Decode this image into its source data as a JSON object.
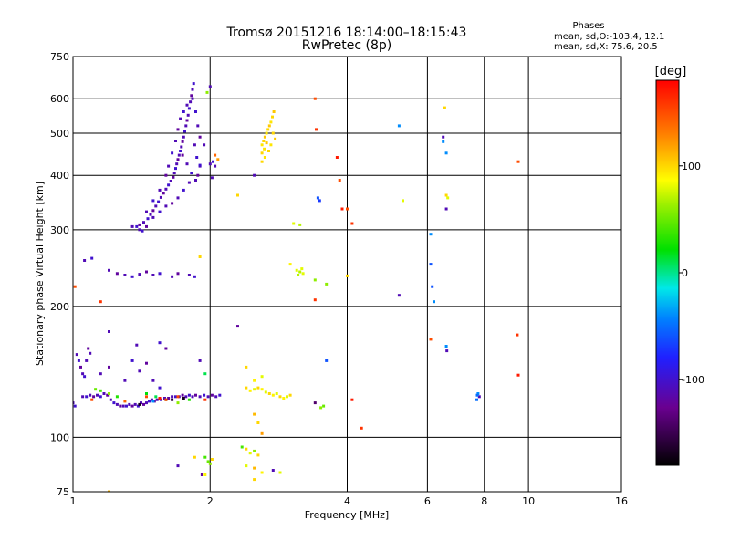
{
  "header": {
    "title": "Tromsø 20151216 18:14:00–18:15:43",
    "subtitle": "RwPretec (8p)"
  },
  "info": {
    "heading": "Phases",
    "line1": "mean, sd,O:-103.4, 12.1",
    "line2": "mean, sd,X:  75.6, 20.5"
  },
  "colorbar": {
    "unit": "[deg]",
    "ticks": [
      "100",
      "0",
      "-100"
    ],
    "tick_values": [
      100,
      0,
      -100
    ],
    "range": [
      -180,
      180
    ]
  },
  "chart_data": {
    "type": "scatter",
    "title": "Tromsø 20151216 18:14:00–18:15:43",
    "subtitle": "RwPretec (8p)",
    "xlabel": "Frequency [MHz]",
    "ylabel": "Stationary phase Virtual Height [km]",
    "x_scale": "log",
    "y_scale": "log",
    "xlim": [
      1,
      16
    ],
    "ylim": [
      75,
      750
    ],
    "x_ticks": [
      1,
      2,
      4,
      6,
      8,
      10,
      16
    ],
    "x_tick_labels": [
      "1",
      "2",
      "4",
      "6",
      "8",
      "10",
      "16"
    ],
    "y_ticks": [
      75,
      100,
      200,
      300,
      400,
      500,
      600,
      750
    ],
    "y_tick_labels": [
      "75",
      "100",
      "200",
      "300",
      "400",
      "500",
      "600",
      "750"
    ],
    "grid": true,
    "color_by": "phase [deg]",
    "points": [
      [
        1.0,
        120,
        -110
      ],
      [
        1.01,
        118,
        -100
      ],
      [
        1.02,
        155,
        -110
      ],
      [
        1.03,
        150,
        -100
      ],
      [
        1.04,
        145,
        -120
      ],
      [
        1.05,
        140,
        -110
      ],
      [
        1.06,
        138,
        -100
      ],
      [
        1.07,
        150,
        -110
      ],
      [
        1.08,
        160,
        -120
      ],
      [
        1.09,
        156,
        -110
      ],
      [
        1.05,
        124,
        -110
      ],
      [
        1.07,
        124,
        -100
      ],
      [
        1.09,
        125,
        -110
      ],
      [
        1.11,
        124,
        -120
      ],
      [
        1.13,
        125,
        -110
      ],
      [
        1.15,
        124,
        -100
      ],
      [
        1.17,
        126,
        -110
      ],
      [
        1.19,
        125,
        -120
      ],
      [
        1.21,
        122,
        -110
      ],
      [
        1.23,
        120,
        -100
      ],
      [
        1.25,
        119,
        -110
      ],
      [
        1.27,
        118,
        -120
      ],
      [
        1.29,
        118,
        -110
      ],
      [
        1.31,
        118,
        -100
      ],
      [
        1.33,
        119,
        -110
      ],
      [
        1.35,
        118,
        -120
      ],
      [
        1.37,
        119,
        -110
      ],
      [
        1.39,
        118,
        -100
      ],
      [
        1.41,
        120,
        -110
      ],
      [
        1.43,
        119,
        -120
      ],
      [
        1.45,
        120,
        -110
      ],
      [
        1.47,
        121,
        -100
      ],
      [
        1.49,
        122,
        -110
      ],
      [
        1.51,
        121,
        -120
      ],
      [
        1.53,
        122,
        -110
      ],
      [
        1.56,
        122,
        -100
      ],
      [
        1.59,
        123,
        -110
      ],
      [
        1.62,
        123,
        -120
      ],
      [
        1.65,
        124,
        -110
      ],
      [
        1.68,
        124,
        -100
      ],
      [
        1.71,
        124,
        -110
      ],
      [
        1.74,
        125,
        -120
      ],
      [
        1.77,
        124,
        -110
      ],
      [
        1.8,
        125,
        -100
      ],
      [
        1.83,
        124,
        -110
      ],
      [
        1.86,
        125,
        -120
      ],
      [
        1.9,
        124,
        -110
      ],
      [
        1.94,
        125,
        -100
      ],
      [
        1.98,
        124,
        -110
      ],
      [
        2.02,
        125,
        -120
      ],
      [
        2.06,
        124,
        -110
      ],
      [
        2.1,
        125,
        -100
      ],
      [
        1.15,
        140,
        -110
      ],
      [
        1.2,
        145,
        -120
      ],
      [
        1.3,
        135,
        -110
      ],
      [
        1.35,
        150,
        -100
      ],
      [
        1.4,
        142,
        -110
      ],
      [
        1.45,
        148,
        -120
      ],
      [
        1.5,
        135,
        -110
      ],
      [
        1.55,
        130,
        -100
      ],
      [
        1.15,
        128,
        40
      ],
      [
        1.2,
        126,
        60
      ],
      [
        1.25,
        124,
        30
      ],
      [
        1.12,
        129,
        50
      ],
      [
        1.45,
        126,
        20
      ],
      [
        1.52,
        124,
        10
      ],
      [
        1.6,
        122,
        40
      ],
      [
        1.7,
        120,
        60
      ],
      [
        1.8,
        122,
        30
      ],
      [
        1.5,
        121,
        -40
      ],
      [
        1.45,
        124,
        150
      ],
      [
        1.55,
        123,
        170
      ],
      [
        1.6,
        122,
        160
      ],
      [
        1.7,
        124,
        150
      ],
      [
        1.3,
        121,
        140
      ],
      [
        1.1,
        122,
        150
      ],
      [
        1.4,
        119,
        -170
      ],
      [
        1.65,
        122,
        -160
      ],
      [
        1.75,
        123,
        -170
      ],
      [
        1.95,
        122,
        160
      ],
      [
        1.2,
        175,
        -110
      ],
      [
        1.55,
        165,
        -100
      ],
      [
        1.6,
        160,
        -120
      ],
      [
        1.38,
        163,
        -110
      ],
      [
        1.9,
        150,
        -110
      ],
      [
        1.95,
        140,
        10
      ],
      [
        1.06,
        255,
        -110
      ],
      [
        1.1,
        258,
        -100
      ],
      [
        1.2,
        242,
        -110
      ],
      [
        1.25,
        238,
        -120
      ],
      [
        1.3,
        236,
        -110
      ],
      [
        1.35,
        234,
        -100
      ],
      [
        1.4,
        237,
        -110
      ],
      [
        1.45,
        240,
        -120
      ],
      [
        1.5,
        236,
        -110
      ],
      [
        1.55,
        238,
        -100
      ],
      [
        1.65,
        234,
        -110
      ],
      [
        1.7,
        238,
        -120
      ],
      [
        1.8,
        236,
        -110
      ],
      [
        1.85,
        234,
        -100
      ],
      [
        1.01,
        222,
        150
      ],
      [
        1.15,
        205,
        160
      ],
      [
        1.4,
        300,
        -110
      ],
      [
        1.45,
        305,
        -120
      ],
      [
        1.42,
        298,
        -100
      ],
      [
        1.9,
        260,
        100
      ],
      [
        1.35,
        305,
        -110
      ],
      [
        1.38,
        305,
        -100
      ],
      [
        1.4,
        308,
        -120
      ],
      [
        1.43,
        312,
        -110
      ],
      [
        1.46,
        318,
        -100
      ],
      [
        1.48,
        325,
        -110
      ],
      [
        1.5,
        332,
        -120
      ],
      [
        1.52,
        340,
        -110
      ],
      [
        1.54,
        348,
        -100
      ],
      [
        1.56,
        356,
        -110
      ],
      [
        1.58,
        364,
        -120
      ],
      [
        1.6,
        372,
        -110
      ],
      [
        1.62,
        380,
        -100
      ],
      [
        1.64,
        388,
        -110
      ],
      [
        1.66,
        396,
        -120
      ],
      [
        1.67,
        405,
        -110
      ],
      [
        1.68,
        415,
        -100
      ],
      [
        1.69,
        425,
        -110
      ],
      [
        1.7,
        435,
        -120
      ],
      [
        1.71,
        445,
        -110
      ],
      [
        1.72,
        455,
        -100
      ],
      [
        1.73,
        465,
        -110
      ],
      [
        1.74,
        478,
        -120
      ],
      [
        1.75,
        490,
        -110
      ],
      [
        1.76,
        505,
        -100
      ],
      [
        1.77,
        520,
        -110
      ],
      [
        1.78,
        535,
        -120
      ],
      [
        1.79,
        550,
        -110
      ],
      [
        1.8,
        570,
        -100
      ],
      [
        1.81,
        590,
        -110
      ],
      [
        1.82,
        610,
        -120
      ],
      [
        1.83,
        630,
        -110
      ],
      [
        1.84,
        650,
        -100
      ],
      [
        1.45,
        330,
        -110
      ],
      [
        1.5,
        350,
        -100
      ],
      [
        1.55,
        370,
        -110
      ],
      [
        1.6,
        400,
        -120
      ],
      [
        1.62,
        420,
        -110
      ],
      [
        1.65,
        450,
        -100
      ],
      [
        1.68,
        480,
        -110
      ],
      [
        1.7,
        510,
        -120
      ],
      [
        1.72,
        540,
        -110
      ],
      [
        1.75,
        560,
        -100
      ],
      [
        1.78,
        580,
        -110
      ],
      [
        1.83,
        600,
        -110
      ],
      [
        1.86,
        560,
        -100
      ],
      [
        1.88,
        520,
        -110
      ],
      [
        1.9,
        490,
        -120
      ],
      [
        1.85,
        470,
        -110
      ],
      [
        1.87,
        440,
        -100
      ],
      [
        1.9,
        420,
        -110
      ],
      [
        1.88,
        400,
        -120
      ],
      [
        1.8,
        385,
        -110
      ],
      [
        1.75,
        370,
        -100
      ],
      [
        1.7,
        355,
        -110
      ],
      [
        1.65,
        345,
        -120
      ],
      [
        1.6,
        340,
        -110
      ],
      [
        1.55,
        330,
        -100
      ],
      [
        1.5,
        320,
        -110
      ],
      [
        1.86,
        390,
        -110
      ],
      [
        1.82,
        405,
        -100
      ],
      [
        1.78,
        425,
        -110
      ],
      [
        1.74,
        445,
        -120
      ],
      [
        1.94,
        470,
        -110
      ],
      [
        1.97,
        620,
        60
      ],
      [
        2.0,
        640,
        -110
      ],
      [
        2.0,
        425,
        -110
      ],
      [
        2.03,
        430,
        -100
      ],
      [
        2.05,
        420,
        -110
      ],
      [
        2.05,
        445,
        140
      ],
      [
        2.08,
        435,
        120
      ],
      [
        2.02,
        395,
        -110
      ],
      [
        1.9,
        422,
        -100
      ],
      [
        2.4,
        130,
        100
      ],
      [
        2.45,
        128,
        90
      ],
      [
        2.5,
        129,
        80
      ],
      [
        2.55,
        130,
        100
      ],
      [
        2.6,
        129,
        90
      ],
      [
        2.65,
        127,
        80
      ],
      [
        2.7,
        126,
        100
      ],
      [
        2.75,
        125,
        90
      ],
      [
        2.8,
        126,
        80
      ],
      [
        2.85,
        124,
        100
      ],
      [
        2.9,
        123,
        90
      ],
      [
        2.95,
        124,
        80
      ],
      [
        3.0,
        125,
        100
      ],
      [
        2.5,
        135,
        90
      ],
      [
        2.6,
        138,
        80
      ],
      [
        2.4,
        145,
        100
      ],
      [
        3.5,
        117,
        60
      ],
      [
        3.55,
        118,
        50
      ],
      [
        3.4,
        120,
        -140
      ],
      [
        2.55,
        108,
        100
      ],
      [
        2.6,
        102,
        120
      ],
      [
        2.5,
        113,
        110
      ],
      [
        2.6,
        470,
        95
      ],
      [
        2.62,
        480,
        100
      ],
      [
        2.64,
        490,
        105
      ],
      [
        2.66,
        500,
        95
      ],
      [
        2.68,
        510,
        100
      ],
      [
        2.7,
        520,
        105
      ],
      [
        2.72,
        530,
        95
      ],
      [
        2.74,
        545,
        100
      ],
      [
        2.76,
        560,
        105
      ],
      [
        2.6,
        450,
        100
      ],
      [
        2.63,
        460,
        95
      ],
      [
        2.66,
        475,
        105
      ],
      [
        2.69,
        455,
        100
      ],
      [
        2.72,
        470,
        95
      ],
      [
        2.75,
        500,
        100
      ],
      [
        2.78,
        485,
        105
      ],
      [
        2.6,
        430,
        100
      ],
      [
        2.64,
        440,
        95
      ],
      [
        2.5,
        400,
        -110
      ],
      [
        2.3,
        360,
        100
      ],
      [
        3.1,
        242,
        80
      ],
      [
        3.15,
        240,
        70
      ],
      [
        3.2,
        238,
        80
      ],
      [
        3.12,
        236,
        70
      ],
      [
        3.18,
        244,
        80
      ],
      [
        3.05,
        310,
        80
      ],
      [
        3.15,
        308,
        70
      ],
      [
        3.4,
        230,
        60
      ],
      [
        3.6,
        225,
        60
      ],
      [
        3.0,
        250,
        90
      ],
      [
        3.4,
        600,
        150
      ],
      [
        3.42,
        510,
        160
      ],
      [
        3.45,
        355,
        -60
      ],
      [
        3.48,
        350,
        -70
      ],
      [
        3.6,
        150,
        -60
      ],
      [
        3.8,
        440,
        170
      ],
      [
        3.85,
        390,
        150
      ],
      [
        3.9,
        335,
        170
      ],
      [
        4.0,
        335,
        150
      ],
      [
        4.1,
        310,
        160
      ],
      [
        3.4,
        207,
        160
      ],
      [
        4.0,
        235,
        100
      ],
      [
        4.1,
        122,
        170
      ],
      [
        4.3,
        105,
        160
      ],
      [
        2.3,
        180,
        -120
      ],
      [
        2.35,
        95,
        40
      ],
      [
        2.4,
        94,
        100
      ],
      [
        2.45,
        92,
        80
      ],
      [
        2.5,
        93,
        60
      ],
      [
        2.55,
        91,
        100
      ],
      [
        2.5,
        85,
        110
      ],
      [
        2.6,
        83,
        90
      ],
      [
        2.4,
        86,
        80
      ],
      [
        2.5,
        80,
        100
      ],
      [
        2.75,
        84,
        -110
      ],
      [
        2.85,
        83,
        80
      ],
      [
        1.95,
        90,
        40
      ],
      [
        1.98,
        88,
        50
      ],
      [
        2.0,
        87,
        60
      ],
      [
        2.02,
        89,
        100
      ],
      [
        1.95,
        82,
        90
      ],
      [
        1.85,
        90,
        100
      ],
      [
        1.7,
        86,
        -110
      ],
      [
        1.2,
        75,
        110
      ],
      [
        1.92,
        82,
        -120
      ],
      [
        5.2,
        520,
        -40
      ],
      [
        5.3,
        350,
        80
      ],
      [
        5.2,
        212,
        -110
      ],
      [
        6.1,
        293,
        -40
      ],
      [
        6.1,
        250,
        -60
      ],
      [
        6.15,
        222,
        -60
      ],
      [
        6.2,
        205,
        -40
      ],
      [
        6.1,
        168,
        150
      ],
      [
        6.5,
        490,
        -110
      ],
      [
        6.5,
        478,
        -40
      ],
      [
        6.6,
        450,
        -40
      ],
      [
        6.6,
        360,
        100
      ],
      [
        6.65,
        355,
        80
      ],
      [
        6.6,
        335,
        -110
      ],
      [
        6.55,
        572,
        100
      ],
      [
        6.6,
        162,
        -40
      ],
      [
        6.62,
        158,
        -110
      ],
      [
        7.7,
        122,
        -50
      ],
      [
        7.75,
        126,
        -40
      ],
      [
        7.8,
        124,
        -110
      ],
      [
        7.72,
        125,
        -50
      ],
      [
        9.5,
        430,
        150
      ],
      [
        9.45,
        172,
        160
      ],
      [
        9.5,
        139,
        170
      ]
    ]
  }
}
